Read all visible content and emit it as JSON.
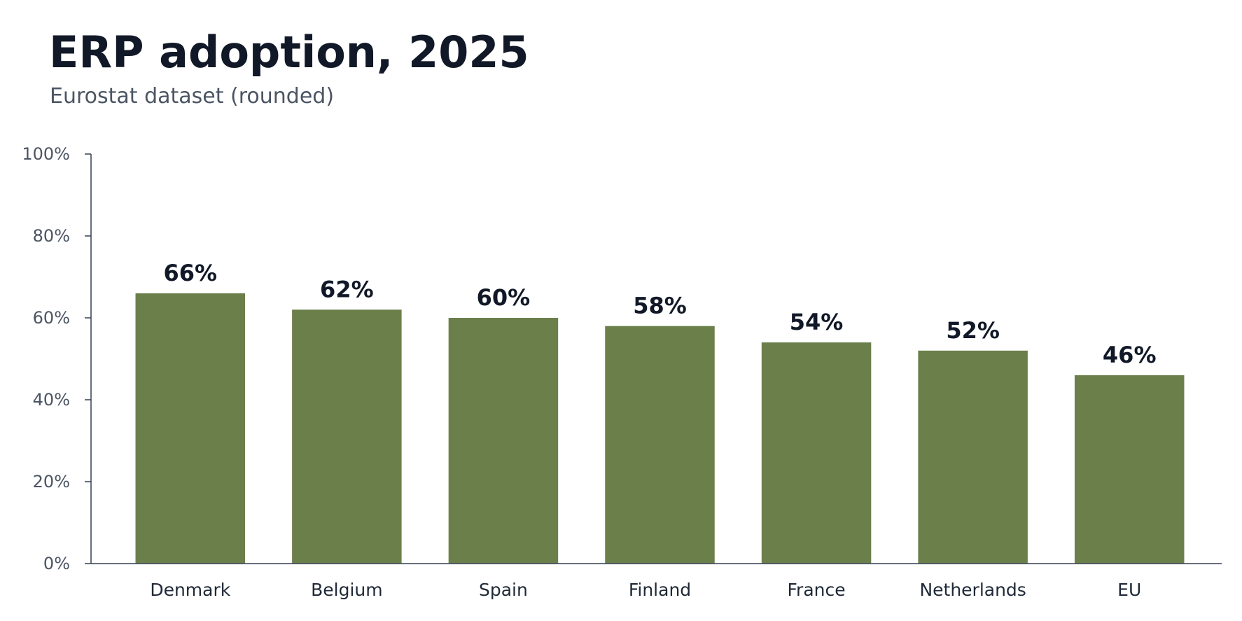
{
  "chart_data": {
    "type": "bar",
    "title": "ERP adoption, 2025",
    "subtitle": "Eurostat dataset (rounded)",
    "categories": [
      "Denmark",
      "Belgium",
      "Spain",
      "Finland",
      "France",
      "Netherlands",
      "EU"
    ],
    "values": [
      66,
      62,
      60,
      58,
      54,
      52,
      46
    ],
    "data_labels": [
      "66%",
      "62%",
      "60%",
      "58%",
      "54%",
      "52%",
      "46%"
    ],
    "xlabel": "",
    "ylabel": "",
    "ylim": [
      0,
      100
    ],
    "yticks": [
      0,
      20,
      40,
      60,
      80,
      100
    ],
    "ytick_labels": [
      "0%",
      "20%",
      "40%",
      "60%",
      "80%",
      "100%"
    ],
    "grid": false,
    "legend": "none",
    "bar_color": "#6b7f4b",
    "axis_color": "#374151"
  }
}
